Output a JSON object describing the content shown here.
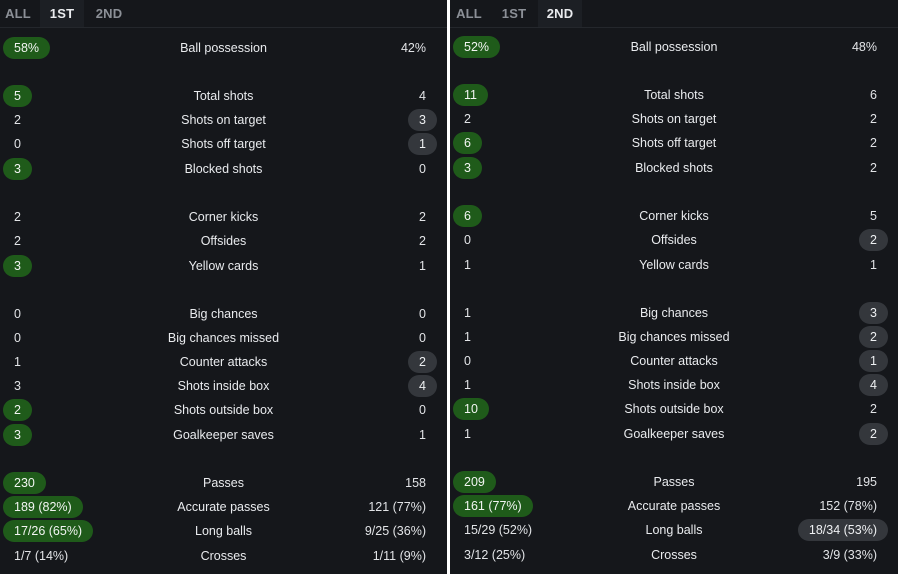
{
  "panels": [
    {
      "tabs": [
        {
          "label": "ALL",
          "active": false
        },
        {
          "label": "1ST",
          "active": true
        },
        {
          "label": "2ND",
          "active": false
        }
      ],
      "rows": [
        {
          "label": "Ball possession",
          "home": "58%",
          "away": "42%",
          "highlight": "home"
        },
        {
          "label": "Total shots",
          "home": "5",
          "away": "4",
          "highlight": "home"
        },
        {
          "label": "Shots on target",
          "home": "2",
          "away": "3",
          "highlight": "away"
        },
        {
          "label": "Shots off target",
          "home": "0",
          "away": "1",
          "highlight": "away"
        },
        {
          "label": "Blocked shots",
          "home": "3",
          "away": "0",
          "highlight": "home"
        },
        {
          "label": "Corner kicks",
          "home": "2",
          "away": "2",
          "highlight": "none"
        },
        {
          "label": "Offsides",
          "home": "2",
          "away": "2",
          "highlight": "none"
        },
        {
          "label": "Yellow cards",
          "home": "3",
          "away": "1",
          "highlight": "home"
        },
        {
          "label": "Big chances",
          "home": "0",
          "away": "0",
          "highlight": "none"
        },
        {
          "label": "Big chances missed",
          "home": "0",
          "away": "0",
          "highlight": "none"
        },
        {
          "label": "Counter attacks",
          "home": "1",
          "away": "2",
          "highlight": "away"
        },
        {
          "label": "Shots inside box",
          "home": "3",
          "away": "4",
          "highlight": "away"
        },
        {
          "label": "Shots outside box",
          "home": "2",
          "away": "0",
          "highlight": "home"
        },
        {
          "label": "Goalkeeper saves",
          "home": "3",
          "away": "1",
          "highlight": "home"
        },
        {
          "label": "Passes",
          "home": "230",
          "away": "158",
          "highlight": "home"
        },
        {
          "label": "Accurate passes",
          "home": "189 (82%)",
          "away": "121 (77%)",
          "highlight": "home"
        },
        {
          "label": "Long balls",
          "home": "17/26 (65%)",
          "away": "9/25 (36%)",
          "highlight": "home"
        },
        {
          "label": "Crosses",
          "home": "1/7 (14%)",
          "away": "1/11 (9%)",
          "highlight": "none"
        }
      ]
    },
    {
      "tabs": [
        {
          "label": "ALL",
          "active": false
        },
        {
          "label": "1ST",
          "active": false
        },
        {
          "label": "2ND",
          "active": true
        }
      ],
      "rows": [
        {
          "label": "Ball possession",
          "home": "52%",
          "away": "48%",
          "highlight": "home"
        },
        {
          "label": "Total shots",
          "home": "11",
          "away": "6",
          "highlight": "home"
        },
        {
          "label": "Shots on target",
          "home": "2",
          "away": "2",
          "highlight": "none"
        },
        {
          "label": "Shots off target",
          "home": "6",
          "away": "2",
          "highlight": "home"
        },
        {
          "label": "Blocked shots",
          "home": "3",
          "away": "2",
          "highlight": "home"
        },
        {
          "label": "Corner kicks",
          "home": "6",
          "away": "5",
          "highlight": "home"
        },
        {
          "label": "Offsides",
          "home": "0",
          "away": "2",
          "highlight": "away"
        },
        {
          "label": "Yellow cards",
          "home": "1",
          "away": "1",
          "highlight": "none"
        },
        {
          "label": "Big chances",
          "home": "1",
          "away": "3",
          "highlight": "away"
        },
        {
          "label": "Big chances missed",
          "home": "1",
          "away": "2",
          "highlight": "away"
        },
        {
          "label": "Counter attacks",
          "home": "0",
          "away": "1",
          "highlight": "away"
        },
        {
          "label": "Shots inside box",
          "home": "1",
          "away": "4",
          "highlight": "away"
        },
        {
          "label": "Shots outside box",
          "home": "10",
          "away": "2",
          "highlight": "home"
        },
        {
          "label": "Goalkeeper saves",
          "home": "1",
          "away": "2",
          "highlight": "away"
        },
        {
          "label": "Passes",
          "home": "209",
          "away": "195",
          "highlight": "home"
        },
        {
          "label": "Accurate passes",
          "home": "161 (77%)",
          "away": "152 (78%)",
          "highlight": "home"
        },
        {
          "label": "Long balls",
          "home": "15/29 (52%)",
          "away": "18/34 (53%)",
          "highlight": "away"
        },
        {
          "label": "Crosses",
          "home": "3/12 (25%)",
          "away": "3/9 (33%)",
          "highlight": "none"
        }
      ]
    }
  ],
  "colors": {
    "background": "#15171b",
    "home_highlight": "#1f5b1a",
    "away_highlight": "#34373c",
    "divider": "#ffffff"
  }
}
